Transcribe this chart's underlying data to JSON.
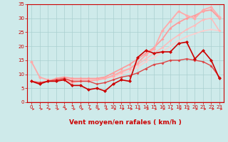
{
  "xlabel": "Vent moyen/en rafales ( km/h )",
  "background_color": "#ceeaea",
  "grid_color": "#aacfcf",
  "x_max": 23,
  "y_max": 35,
  "y_ticks": [
    0,
    5,
    10,
    15,
    20,
    25,
    30,
    35
  ],
  "lines": [
    {
      "x": [
        0,
        1,
        2,
        3,
        4,
        5,
        6,
        7,
        8,
        9,
        10,
        11,
        12,
        13,
        14,
        15,
        16,
        17,
        18,
        19,
        20,
        21,
        22,
        23
      ],
      "y": [
        7.5,
        6.5,
        7.5,
        7.5,
        8.0,
        6.0,
        6.0,
        4.5,
        5.0,
        4.0,
        6.5,
        8.0,
        7.5,
        16.0,
        18.5,
        17.5,
        18.0,
        18.0,
        21.0,
        21.5,
        15.5,
        18.5,
        15.0,
        8.5
      ],
      "color": "#cc0000",
      "lw": 1.2,
      "marker": "D",
      "ms": 2.5,
      "alpha": 1.0,
      "zorder": 5
    },
    {
      "x": [
        0,
        1,
        2,
        3,
        4,
        5,
        6,
        7,
        8,
        9,
        10,
        11,
        12,
        13,
        14,
        15,
        16,
        17,
        18,
        19,
        20,
        21,
        22,
        23
      ],
      "y": [
        7.5,
        7.0,
        7.5,
        8.0,
        8.5,
        7.5,
        7.5,
        7.5,
        6.5,
        7.0,
        8.0,
        9.0,
        9.5,
        10.5,
        12.0,
        13.5,
        14.0,
        15.0,
        15.0,
        15.5,
        15.0,
        14.5,
        13.0,
        9.0
      ],
      "color": "#dd4444",
      "lw": 1.0,
      "marker": "D",
      "ms": 2.0,
      "alpha": 1.0,
      "zorder": 4
    },
    {
      "x": [
        0,
        1,
        2,
        3,
        4,
        5,
        6,
        7,
        8,
        9,
        10,
        11,
        12,
        13,
        14,
        15,
        16,
        17,
        18,
        19,
        20,
        21,
        22,
        23
      ],
      "y": [
        14.5,
        9.0,
        8.0,
        8.0,
        8.0,
        7.0,
        7.5,
        7.5,
        8.0,
        8.5,
        9.5,
        11.0,
        12.0,
        14.0,
        17.0,
        19.0,
        25.5,
        29.0,
        32.5,
        31.0,
        30.0,
        33.0,
        34.0,
        30.5
      ],
      "color": "#ffaaaa",
      "lw": 1.3,
      "marker": "D",
      "ms": 2.5,
      "alpha": 1.0,
      "zorder": 3
    },
    {
      "x": [
        0,
        1,
        2,
        3,
        4,
        5,
        6,
        7,
        8,
        9,
        10,
        11,
        12,
        13,
        14,
        15,
        16,
        17,
        18,
        19,
        20,
        21,
        22,
        23
      ],
      "y": [
        7.5,
        7.0,
        7.5,
        8.0,
        8.5,
        8.0,
        8.0,
        8.0,
        8.0,
        8.5,
        9.5,
        10.5,
        12.0,
        13.5,
        15.5,
        17.5,
        19.5,
        22.0,
        24.0,
        26.0,
        27.5,
        29.5,
        30.0,
        25.5
      ],
      "color": "#ffbbbb",
      "lw": 1.1,
      "marker": "D",
      "ms": 2.0,
      "alpha": 1.0,
      "zorder": 2
    },
    {
      "x": [
        0,
        1,
        2,
        3,
        4,
        5,
        6,
        7,
        8,
        9,
        10,
        11,
        12,
        13,
        14,
        15,
        16,
        17,
        18,
        19,
        20,
        21,
        22,
        23
      ],
      "y": [
        7.5,
        7.0,
        7.5,
        8.5,
        9.0,
        8.5,
        8.5,
        8.5,
        8.5,
        9.0,
        10.5,
        12.0,
        13.5,
        15.5,
        17.5,
        19.5,
        22.5,
        26.5,
        28.5,
        30.0,
        31.0,
        32.5,
        33.0,
        30.0
      ],
      "color": "#ff9999",
      "lw": 1.2,
      "marker": "D",
      "ms": 2.0,
      "alpha": 1.0,
      "zorder": 2
    },
    {
      "x": [
        0,
        1,
        2,
        3,
        4,
        5,
        6,
        7,
        8,
        9,
        10,
        11,
        12,
        13,
        14,
        15,
        16,
        17,
        18,
        19,
        20,
        21,
        22,
        23
      ],
      "y": [
        7.5,
        7.0,
        7.5,
        8.0,
        8.5,
        8.0,
        8.0,
        8.0,
        8.0,
        8.5,
        9.0,
        10.0,
        11.0,
        12.5,
        14.5,
        16.0,
        18.0,
        20.0,
        22.0,
        23.5,
        24.5,
        25.5,
        26.0,
        25.5
      ],
      "color": "#ffcccc",
      "lw": 1.0,
      "marker": "D",
      "ms": 1.8,
      "alpha": 1.0,
      "zorder": 1
    }
  ],
  "arrow_color": "#dd2222",
  "axis_color": "#cc0000",
  "tick_fontsize": 5.0,
  "xlabel_fontsize": 6.5
}
